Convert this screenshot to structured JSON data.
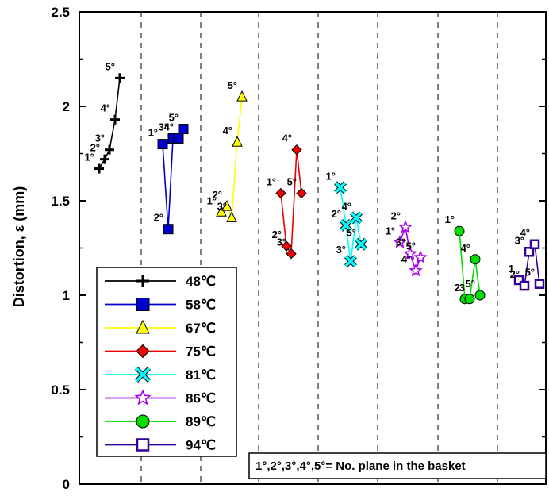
{
  "chart_data": {
    "type": "line",
    "ylabel": "Distortion, ε (mm)",
    "ylim": [
      0,
      2.5
    ],
    "yticks": [
      {
        "value": 0,
        "label": "0"
      },
      {
        "value": 0.5,
        "label": "0.5"
      },
      {
        "value": 1,
        "label": "1"
      },
      {
        "value": 1.5,
        "label": "1.5"
      },
      {
        "value": 2,
        "label": "2"
      },
      {
        "value": 2.5,
        "label": "2.5"
      }
    ],
    "grid": "vertical dashed separators between temperature groups",
    "legend_position": "bottom-left",
    "annotation": "1°,2°,3°,4°,5°= No. plane in the basket",
    "series": [
      {
        "name": "48℃",
        "color": "#000000",
        "marker": "plus",
        "values": [
          1.67,
          1.72,
          1.77,
          1.93,
          2.15
        ],
        "labels": [
          "1°",
          "2°",
          "3°",
          "4°",
          "5°"
        ]
      },
      {
        "name": "58℃",
        "color": "#0000cc",
        "marker": "square",
        "values": [
          1.8,
          1.35,
          1.83,
          1.83,
          1.88
        ],
        "labels": [
          "1°",
          "2°",
          "3°",
          "4°",
          "5°"
        ]
      },
      {
        "name": "67℃",
        "color": "#ffff00",
        "marker": "triangle",
        "values": [
          1.44,
          1.47,
          1.41,
          1.81,
          2.05
        ],
        "labels": [
          "1°",
          "2°",
          "3°",
          "4°",
          "5°"
        ]
      },
      {
        "name": "75℃",
        "color": "#ee0000",
        "marker": "diamond",
        "values": [
          1.54,
          1.26,
          1.22,
          1.77,
          1.54
        ],
        "labels": [
          "1°",
          "2°",
          "3°",
          "4°",
          "5°"
        ]
      },
      {
        "name": "81℃",
        "color": "#00ffff",
        "marker": "x",
        "values": [
          1.57,
          1.37,
          1.18,
          1.41,
          1.27
        ],
        "labels": [
          "1°",
          "2°",
          "3°",
          "4°",
          "5°"
        ]
      },
      {
        "name": "86℃",
        "color": "#aa00ee",
        "marker": "star",
        "values": [
          1.28,
          1.36,
          1.22,
          1.13,
          1.2
        ],
        "labels": [
          "1°",
          "2°",
          "3°",
          "4°",
          "5°"
        ]
      },
      {
        "name": "89℃",
        "color": "#00dd00",
        "marker": "circle",
        "values": [
          1.34,
          0.98,
          0.98,
          1.19,
          1.0
        ],
        "labels": [
          "1°",
          "2",
          "3",
          "4°",
          "5°"
        ]
      },
      {
        "name": "94℃",
        "color": "#330099",
        "marker": "opensquare",
        "values": [
          1.08,
          1.05,
          1.23,
          1.27,
          1.06
        ],
        "labels": [
          "1",
          "2°",
          "3°",
          "4°",
          "5°"
        ]
      }
    ]
  }
}
